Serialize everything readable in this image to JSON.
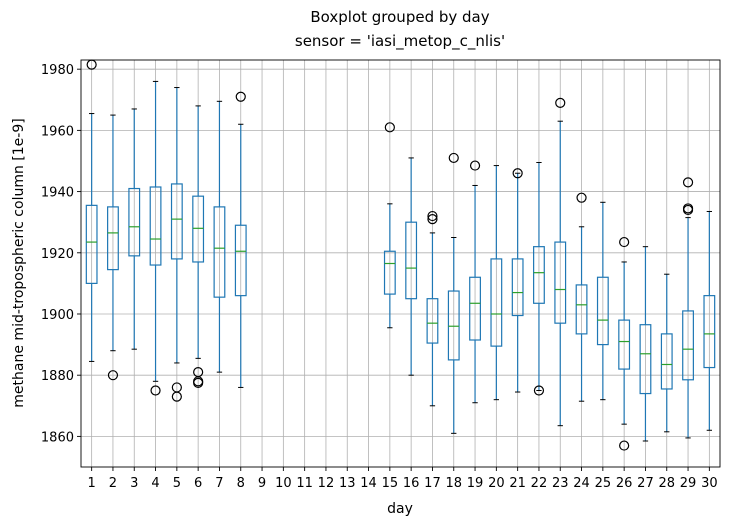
{
  "chart_data": {
    "type": "boxplot",
    "title": "Boxplot grouped by day",
    "subtitle": "sensor = 'iasi_metop_c_nlis'",
    "xlabel": "day",
    "ylabel": "methane mid-tropospheric column [1e-9]",
    "ylim": [
      1850,
      1983
    ],
    "yticks": [
      1860,
      1880,
      1900,
      1920,
      1940,
      1960,
      1980
    ],
    "grid": true,
    "colors": {
      "box": "#1f77b4",
      "median": "#2ca02c",
      "flier": "#000000",
      "grid": "#b0b0b0"
    },
    "categories": [
      "1",
      "2",
      "3",
      "4",
      "5",
      "6",
      "7",
      "8",
      "9",
      "10",
      "11",
      "12",
      "13",
      "14",
      "15",
      "16",
      "17",
      "18",
      "19",
      "20",
      "21",
      "22",
      "23",
      "24",
      "25",
      "26",
      "27",
      "28",
      "29",
      "30"
    ],
    "boxes": [
      {
        "x": "1",
        "whislo": 1884.5,
        "q1": 1910.0,
        "med": 1923.5,
        "q3": 1935.5,
        "whishi": 1965.5,
        "fliers": [
          1981.5
        ]
      },
      {
        "x": "2",
        "whislo": 1888.0,
        "q1": 1914.5,
        "med": 1926.5,
        "q3": 1935.0,
        "whishi": 1965.0,
        "fliers": [
          1880.0
        ]
      },
      {
        "x": "3",
        "whislo": 1888.5,
        "q1": 1919.0,
        "med": 1928.5,
        "q3": 1941.0,
        "whishi": 1967.0,
        "fliers": []
      },
      {
        "x": "4",
        "whislo": 1878.0,
        "q1": 1916.0,
        "med": 1924.5,
        "q3": 1941.5,
        "whishi": 1976.0,
        "fliers": [
          1875.0
        ]
      },
      {
        "x": "5",
        "whislo": 1884.0,
        "q1": 1918.0,
        "med": 1931.0,
        "q3": 1942.5,
        "whishi": 1974.0,
        "fliers": [
          1876.0,
          1873.0
        ]
      },
      {
        "x": "6",
        "whislo": 1885.5,
        "q1": 1917.0,
        "med": 1928.0,
        "q3": 1938.5,
        "whishi": 1968.0,
        "fliers": [
          1881.0,
          1878.0,
          1877.5
        ]
      },
      {
        "x": "7",
        "whislo": 1881.0,
        "q1": 1905.5,
        "med": 1921.5,
        "q3": 1935.0,
        "whishi": 1969.5,
        "fliers": []
      },
      {
        "x": "8",
        "whislo": 1876.0,
        "q1": 1906.0,
        "med": 1920.5,
        "q3": 1929.0,
        "whishi": 1962.0,
        "fliers": [
          1971.0
        ]
      },
      {
        "x": "15",
        "whislo": 1895.5,
        "q1": 1906.5,
        "med": 1916.5,
        "q3": 1920.5,
        "whishi": 1936.0,
        "fliers": [
          1961.0
        ]
      },
      {
        "x": "16",
        "whislo": 1880.0,
        "q1": 1905.0,
        "med": 1915.0,
        "q3": 1930.0,
        "whishi": 1951.0,
        "fliers": []
      },
      {
        "x": "17",
        "whislo": 1870.0,
        "q1": 1890.5,
        "med": 1897.0,
        "q3": 1905.0,
        "whishi": 1926.5,
        "fliers": [
          1932.0,
          1931.0
        ]
      },
      {
        "x": "18",
        "whislo": 1861.0,
        "q1": 1885.0,
        "med": 1896.0,
        "q3": 1907.5,
        "whishi": 1925.0,
        "fliers": [
          1951.0
        ]
      },
      {
        "x": "19",
        "whislo": 1871.0,
        "q1": 1891.5,
        "med": 1903.5,
        "q3": 1912.0,
        "whishi": 1942.0,
        "fliers": [
          1948.5
        ]
      },
      {
        "x": "20",
        "whislo": 1872.0,
        "q1": 1889.5,
        "med": 1900.0,
        "q3": 1918.0,
        "whishi": 1948.5,
        "fliers": []
      },
      {
        "x": "21",
        "whislo": 1874.5,
        "q1": 1899.5,
        "med": 1907.0,
        "q3": 1918.0,
        "whishi": 1946.0,
        "fliers": [
          1946.0
        ]
      },
      {
        "x": "22",
        "whislo": 1875.0,
        "q1": 1903.5,
        "med": 1913.5,
        "q3": 1922.0,
        "whishi": 1949.5,
        "fliers": [
          1875.0
        ]
      },
      {
        "x": "23",
        "whislo": 1863.5,
        "q1": 1897.0,
        "med": 1908.0,
        "q3": 1923.5,
        "whishi": 1963.0,
        "fliers": [
          1969.0
        ]
      },
      {
        "x": "24",
        "whislo": 1871.5,
        "q1": 1893.5,
        "med": 1903.0,
        "q3": 1909.5,
        "whishi": 1928.5,
        "fliers": [
          1938.0
        ]
      },
      {
        "x": "25",
        "whislo": 1872.0,
        "q1": 1890.0,
        "med": 1898.0,
        "q3": 1912.0,
        "whishi": 1936.5,
        "fliers": []
      },
      {
        "x": "26",
        "whislo": 1864.0,
        "q1": 1882.0,
        "med": 1891.0,
        "q3": 1898.0,
        "whishi": 1917.0,
        "fliers": [
          1923.5,
          1857.0
        ]
      },
      {
        "x": "27",
        "whislo": 1858.5,
        "q1": 1874.0,
        "med": 1887.0,
        "q3": 1896.5,
        "whishi": 1922.0,
        "fliers": []
      },
      {
        "x": "28",
        "whislo": 1861.5,
        "q1": 1875.5,
        "med": 1883.5,
        "q3": 1893.5,
        "whishi": 1913.0,
        "fliers": []
      },
      {
        "x": "29",
        "whislo": 1859.5,
        "q1": 1878.5,
        "med": 1888.5,
        "q3": 1901.0,
        "whishi": 1931.5,
        "fliers": [
          1943.0,
          1934.5,
          1934.0
        ]
      },
      {
        "x": "30",
        "whislo": 1862.0,
        "q1": 1882.5,
        "med": 1893.5,
        "q3": 1906.0,
        "whishi": 1933.5,
        "fliers": []
      }
    ]
  }
}
